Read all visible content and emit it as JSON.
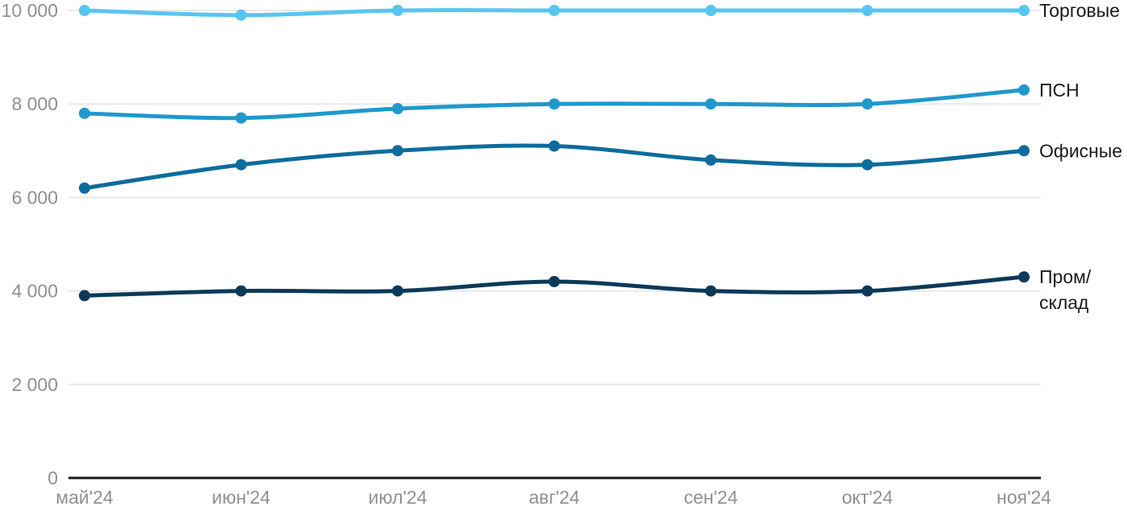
{
  "chart_data": {
    "type": "line",
    "title": "",
    "categories": [
      "май'24",
      "июн'24",
      "июл'24",
      "авг'24",
      "сен'24",
      "окт'24",
      "ноя'24"
    ],
    "series": [
      {
        "name": "Торговые",
        "label_lines": [
          "Торговые"
        ],
        "color": "#58C5F1",
        "values": [
          10000,
          9900,
          10000,
          10000,
          10000,
          10000,
          10000
        ]
      },
      {
        "name": "ПСН",
        "label_lines": [
          "ПСН"
        ],
        "color": "#2098CC",
        "values": [
          7800,
          7700,
          7900,
          8000,
          8000,
          8000,
          8300
        ]
      },
      {
        "name": "Офисные",
        "label_lines": [
          "Офисные"
        ],
        "color": "#0C6C9C",
        "values": [
          6200,
          6700,
          7000,
          7100,
          6800,
          6700,
          7000
        ]
      },
      {
        "name": "Пром/склад",
        "label_lines": [
          "Пром/",
          "склад"
        ],
        "color": "#0B3A59",
        "values": [
          3900,
          4000,
          4000,
          4200,
          4000,
          4000,
          4300
        ]
      }
    ],
    "y_axis": {
      "min": 0,
      "max": 10000,
      "ticks": [
        0,
        2000,
        4000,
        6000,
        8000,
        10000
      ],
      "tick_labels": [
        "0",
        "2 000",
        "4 000",
        "6 000",
        "8 000",
        "10 000"
      ]
    },
    "x_axis": {
      "tick_labels": [
        "май'24",
        "июн'24",
        "июл'24",
        "авг'24",
        "сен'24",
        "окт'24",
        "ноя'24"
      ]
    },
    "grid": true,
    "legend_position": "right-of-line-end"
  },
  "colors": {
    "background": "#ffffff",
    "grid_line": "#e8e8e8",
    "axis_line": "#1a1a1a",
    "tick_text": "#909090",
    "series_label_text": "#1a1a1a"
  }
}
